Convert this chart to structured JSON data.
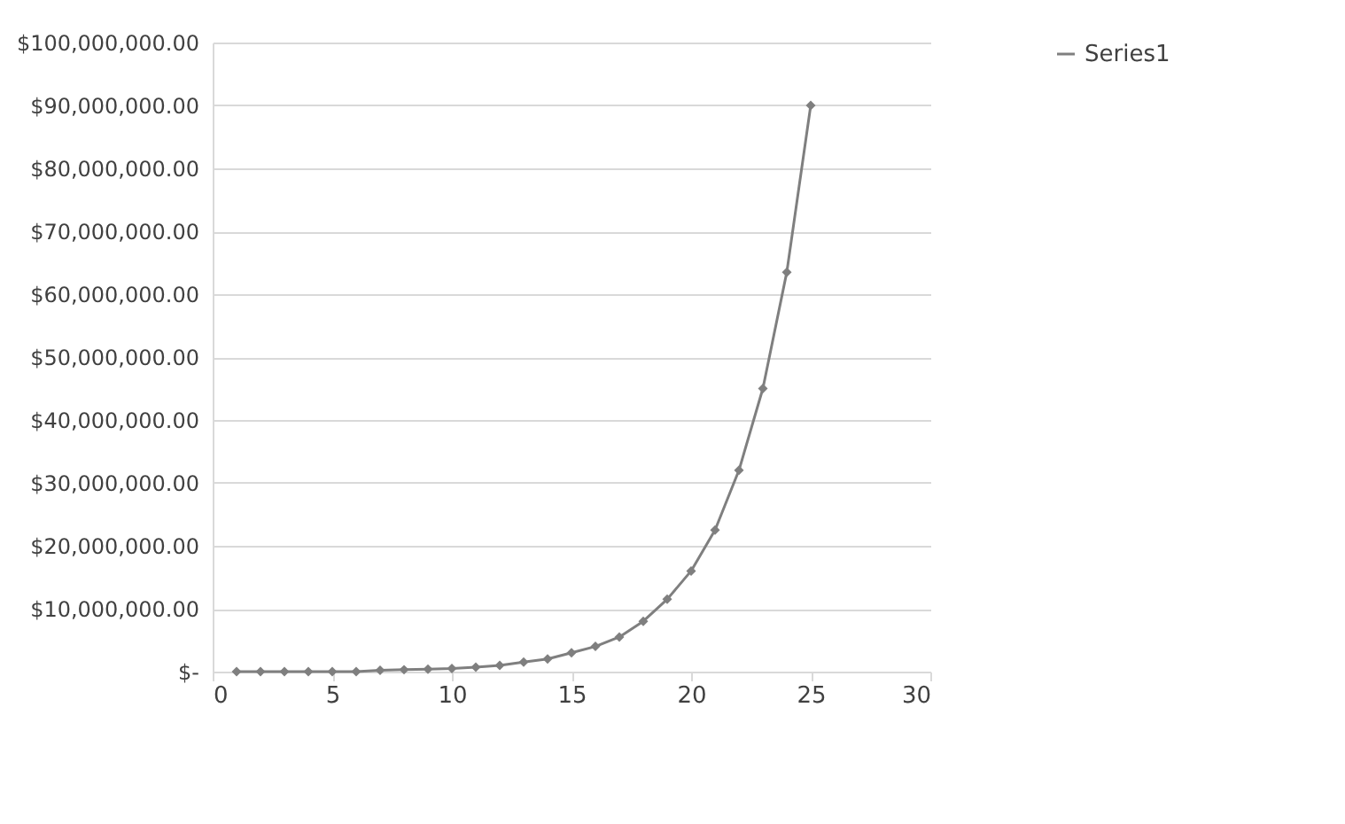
{
  "chart_data": {
    "type": "line",
    "x": [
      1,
      2,
      3,
      4,
      5,
      6,
      7,
      8,
      9,
      10,
      11,
      12,
      13,
      14,
      15,
      16,
      17,
      18,
      19,
      20,
      21,
      22,
      23,
      24,
      25
    ],
    "series": [
      {
        "name": "Series1",
        "color": "#7f7f7f",
        "values": [
          0,
          0,
          0,
          0,
          0,
          0,
          200000,
          300000,
          400000,
          500000,
          700000,
          1000000,
          1500000,
          2000000,
          3000000,
          4000000,
          5500000,
          8000000,
          11500000,
          16000000,
          22500000,
          32000000,
          45000000,
          63500000,
          90000000
        ]
      }
    ],
    "xlim": [
      0,
      30
    ],
    "xticks": [
      0,
      5,
      10,
      15,
      20,
      25,
      30
    ],
    "ylim": [
      0,
      100000000
    ],
    "yticks": [
      {
        "value": 0,
        "label": "$-"
      },
      {
        "value": 10000000,
        "label": "$10,000,000.00"
      },
      {
        "value": 20000000,
        "label": "$20,000,000.00"
      },
      {
        "value": 30000000,
        "label": "$30,000,000.00"
      },
      {
        "value": 40000000,
        "label": "$40,000,000.00"
      },
      {
        "value": 50000000,
        "label": "$50,000,000.00"
      },
      {
        "value": 60000000,
        "label": "$60,000,000.00"
      },
      {
        "value": 70000000,
        "label": "$70,000,000.00"
      },
      {
        "value": 80000000,
        "label": "$80,000,000.00"
      },
      {
        "value": 90000000,
        "label": "$90,000,000.00"
      },
      {
        "value": 100000000,
        "label": "$100,000,000.00"
      }
    ],
    "grid": "y",
    "legend": "right",
    "marker": "diamond",
    "line_style": "solid"
  }
}
